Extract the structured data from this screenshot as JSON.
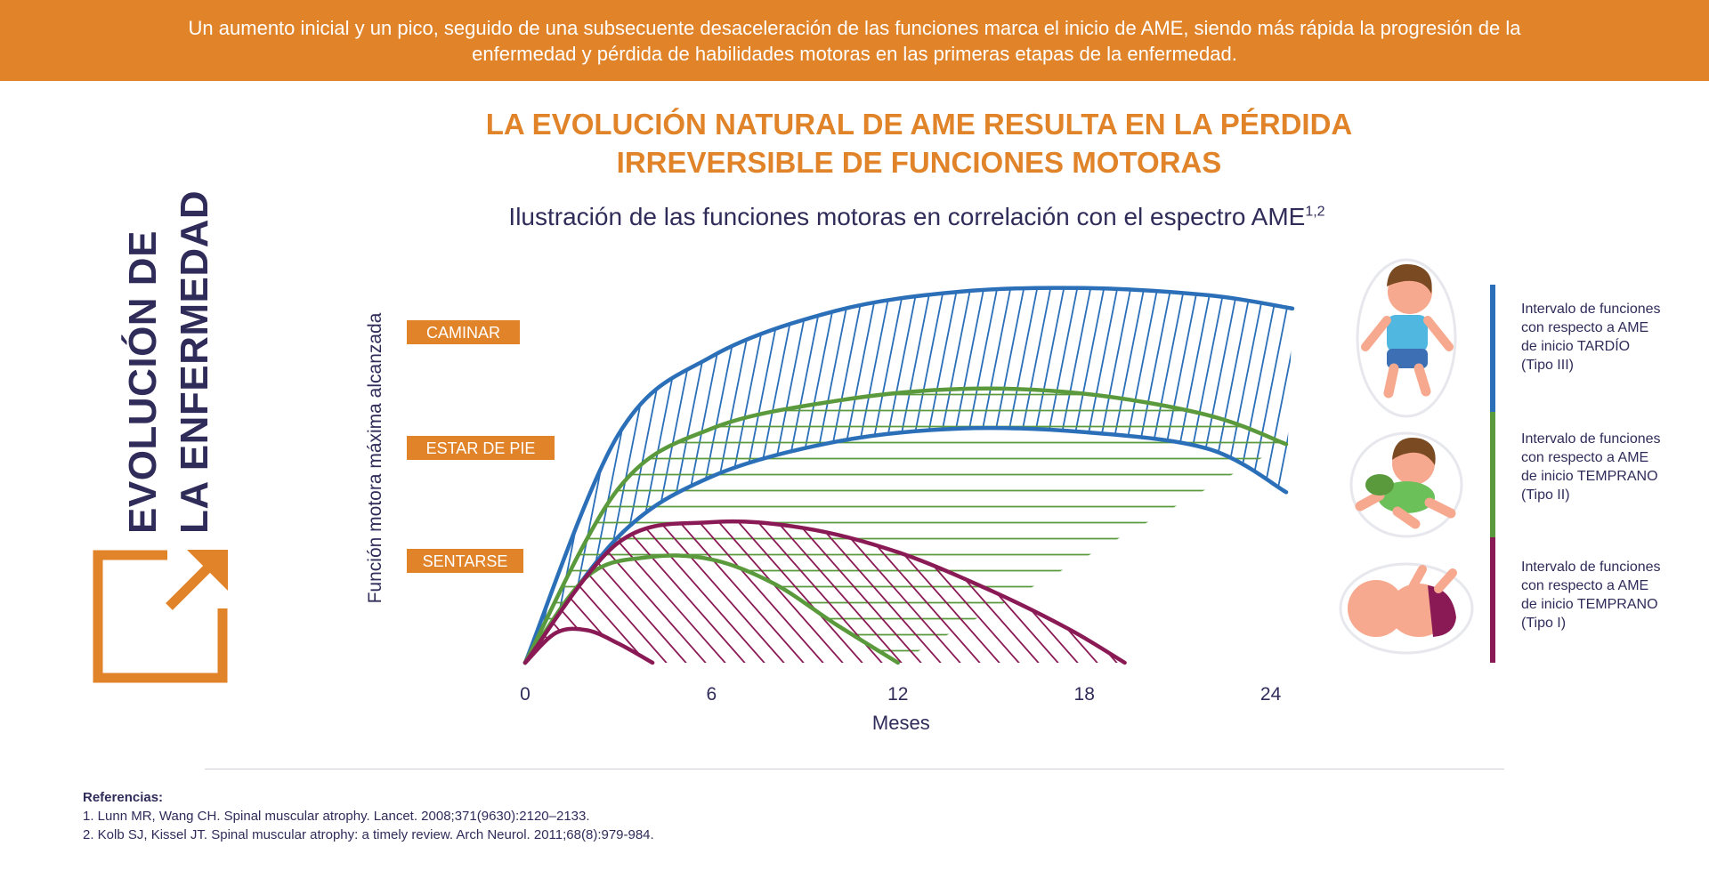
{
  "banner": {
    "text": "Un aumento inicial y un pico, seguido de una subsecuente desaceleración de las funciones marca el inicio de AME, siendo más rápida la progresión de la enfermedad y pérdida de habilidades motoras en las primeras etapas de la enfermedad."
  },
  "side_title": {
    "line1": "EVOLUCIÓN DE",
    "line2": "LA ENFERMEDAD"
  },
  "main_title": {
    "line1": "LA EVOLUCIÓN NATURAL DE AME RESULTA EN LA PÉRDIDA",
    "line2": "IRREVERSIBLE DE FUNCIONES MOTORAS"
  },
  "subtitle": {
    "text": "Ilustración de las funciones motoras en correlación con el espectro AME",
    "sup": "1,2"
  },
  "colors": {
    "orange": "#e08329",
    "navy": "#302c5a",
    "blue": "#2a6fb8",
    "green": "#5a9a3c",
    "purple": "#8a1a55"
  },
  "chart_data": {
    "type": "area",
    "xlabel": "Meses",
    "ylabel": "Función motora máxima alcanzada",
    "x_ticks": [
      0,
      6,
      12,
      18,
      24
    ],
    "xlim": [
      0,
      25
    ],
    "y_milestones": [
      "CAMINAR",
      "ESTAR DE PIE",
      "SENTARSE"
    ],
    "series": [
      {
        "name": "Intervalo de funciones con respecto a AME de inicio TARDÍO (Tipo III)",
        "color": "#2a6fb8",
        "fill": "diagonal-hatch",
        "upper": {
          "x": [
            0,
            3,
            6,
            10,
            14,
            18,
            22,
            24.7
          ],
          "y": [
            0,
            1.9,
            2.55,
            2.93,
            3.09,
            3.12,
            3.06,
            2.95
          ]
        },
        "lower": {
          "x": [
            0,
            3,
            6,
            10,
            14,
            18,
            22,
            24.5
          ],
          "y": [
            0,
            1.05,
            1.55,
            1.84,
            1.95,
            1.92,
            1.78,
            1.42
          ]
        }
      },
      {
        "name": "Intervalo de funciones con respecto a AME de inicio TEMPRANO (Tipo II)",
        "color": "#5a9a3c",
        "fill": "horizontal-hatch",
        "upper": {
          "x": [
            0,
            3,
            6,
            10,
            14,
            18,
            22,
            24.5
          ],
          "y": [
            0,
            1.45,
            1.95,
            2.18,
            2.28,
            2.24,
            2.06,
            1.82
          ]
        },
        "lower": {
          "x": [
            0,
            2,
            4,
            6,
            8,
            10,
            12
          ],
          "y": [
            0,
            0.72,
            0.88,
            0.86,
            0.66,
            0.32,
            0
          ]
        }
      },
      {
        "name": "Intervalo de funciones con respecto a AME de inicio TEMPRANO (Tipo I)",
        "color": "#8a1a55",
        "fill": "diagonal-hatch",
        "upper": {
          "x": [
            0,
            3,
            6,
            9,
            12,
            15,
            17.5,
            19.3
          ],
          "y": [
            0,
            1.0,
            1.17,
            1.12,
            0.92,
            0.6,
            0.28,
            0
          ]
        },
        "lower": {
          "x": [
            0,
            1,
            2,
            3,
            4.1
          ],
          "y": [
            0,
            0.25,
            0.27,
            0.16,
            0
          ]
        }
      }
    ]
  },
  "legend": {
    "tipo3": [
      "Intervalo de funciones",
      "con respecto a AME",
      "de inicio TARDÍO",
      "(Tipo III)"
    ],
    "tipo2": [
      "Intervalo de funciones",
      "con respecto a AME",
      "de inicio TEMPRANO",
      "(Tipo II)"
    ],
    "tipo1": [
      "Intervalo de funciones",
      "con respecto a AME",
      "de inicio TEMPRANO",
      "(Tipo I)"
    ]
  },
  "references": {
    "title": "Referencias:",
    "items": [
      "1. Lunn MR, Wang CH. Spinal muscular atrophy. Lancet. 2008;371(9630):2120–2133.",
      "2. Kolb SJ, Kissel JT. Spinal muscular atrophy: a timely review. Arch Neurol. 2011;68(8):979-984."
    ]
  }
}
